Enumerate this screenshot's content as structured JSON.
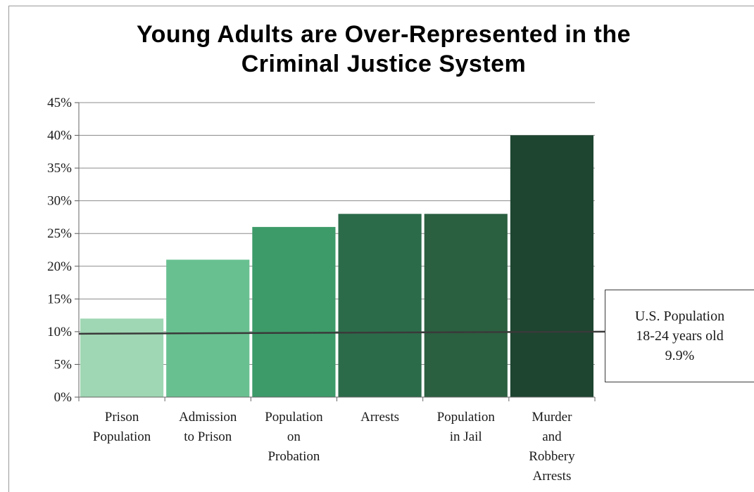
{
  "chart_data": {
    "type": "bar",
    "title": "Young Adults are Over-Represented in the\nCriminal Justice System",
    "categories": [
      [
        "Prison",
        "Population"
      ],
      [
        "Admission",
        "to Prison"
      ],
      [
        "Population",
        "on",
        "Probation"
      ],
      [
        "Arrests"
      ],
      [
        "Population",
        "in Jail"
      ],
      [
        "Murder",
        "and",
        "Robbery",
        "Arrests"
      ]
    ],
    "values": [
      12,
      21,
      26,
      28,
      28,
      40
    ],
    "ylim": [
      0,
      45
    ],
    "yticks": [
      0,
      5,
      10,
      15,
      20,
      25,
      30,
      35,
      40,
      45
    ],
    "ytick_labels": [
      "0%",
      "5%",
      "10%",
      "15%",
      "20%",
      "25%",
      "30%",
      "35%",
      "40%",
      "45%"
    ],
    "grid": true,
    "bar_colors": [
      "#9fd6b3",
      "#68c090",
      "#3d9b69",
      "#2b6b4a",
      "#2a5f40",
      "#1d4530"
    ],
    "reference_line": {
      "value": 9.9,
      "label_lines": [
        "U.S. Population",
        "18-24 years old",
        "9.9%"
      ],
      "color": "#3a3a3a"
    }
  }
}
